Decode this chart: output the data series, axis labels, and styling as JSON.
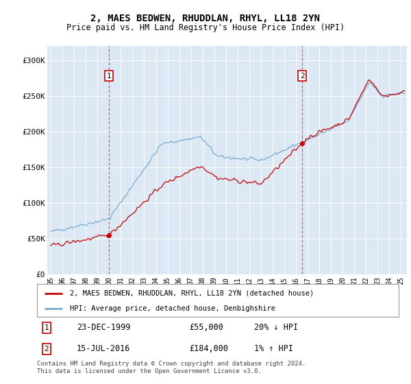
{
  "title": "2, MAES BEDWEN, RHUDDLAN, RHYL, LL18 2YN",
  "subtitle": "Price paid vs. HM Land Registry's House Price Index (HPI)",
  "bg_color": "#dce9f5",
  "plot_bg_color": "#dce9f5",
  "sale1_date": "23-DEC-1999",
  "sale1_price": 55000,
  "sale1_label": "1",
  "sale1_year": 1999.97,
  "sale2_date": "15-JUL-2016",
  "sale2_price": 184000,
  "sale2_label": "2",
  "sale2_year": 2016.54,
  "legend_property": "2, MAES BEDWEN, RHUDDLAN, RHYL, LL18 2YN (detached house)",
  "legend_hpi": "HPI: Average price, detached house, Denbighshire",
  "footer": "Contains HM Land Registry data © Crown copyright and database right 2024.\nThis data is licensed under the Open Government Licence v3.0.",
  "ymin": 0,
  "ymax": 320000,
  "xmin": 1994.7,
  "xmax": 2025.5,
  "property_color": "#cc0000",
  "hpi_color": "#7aaad0",
  "dashed_color": "#dd4444"
}
